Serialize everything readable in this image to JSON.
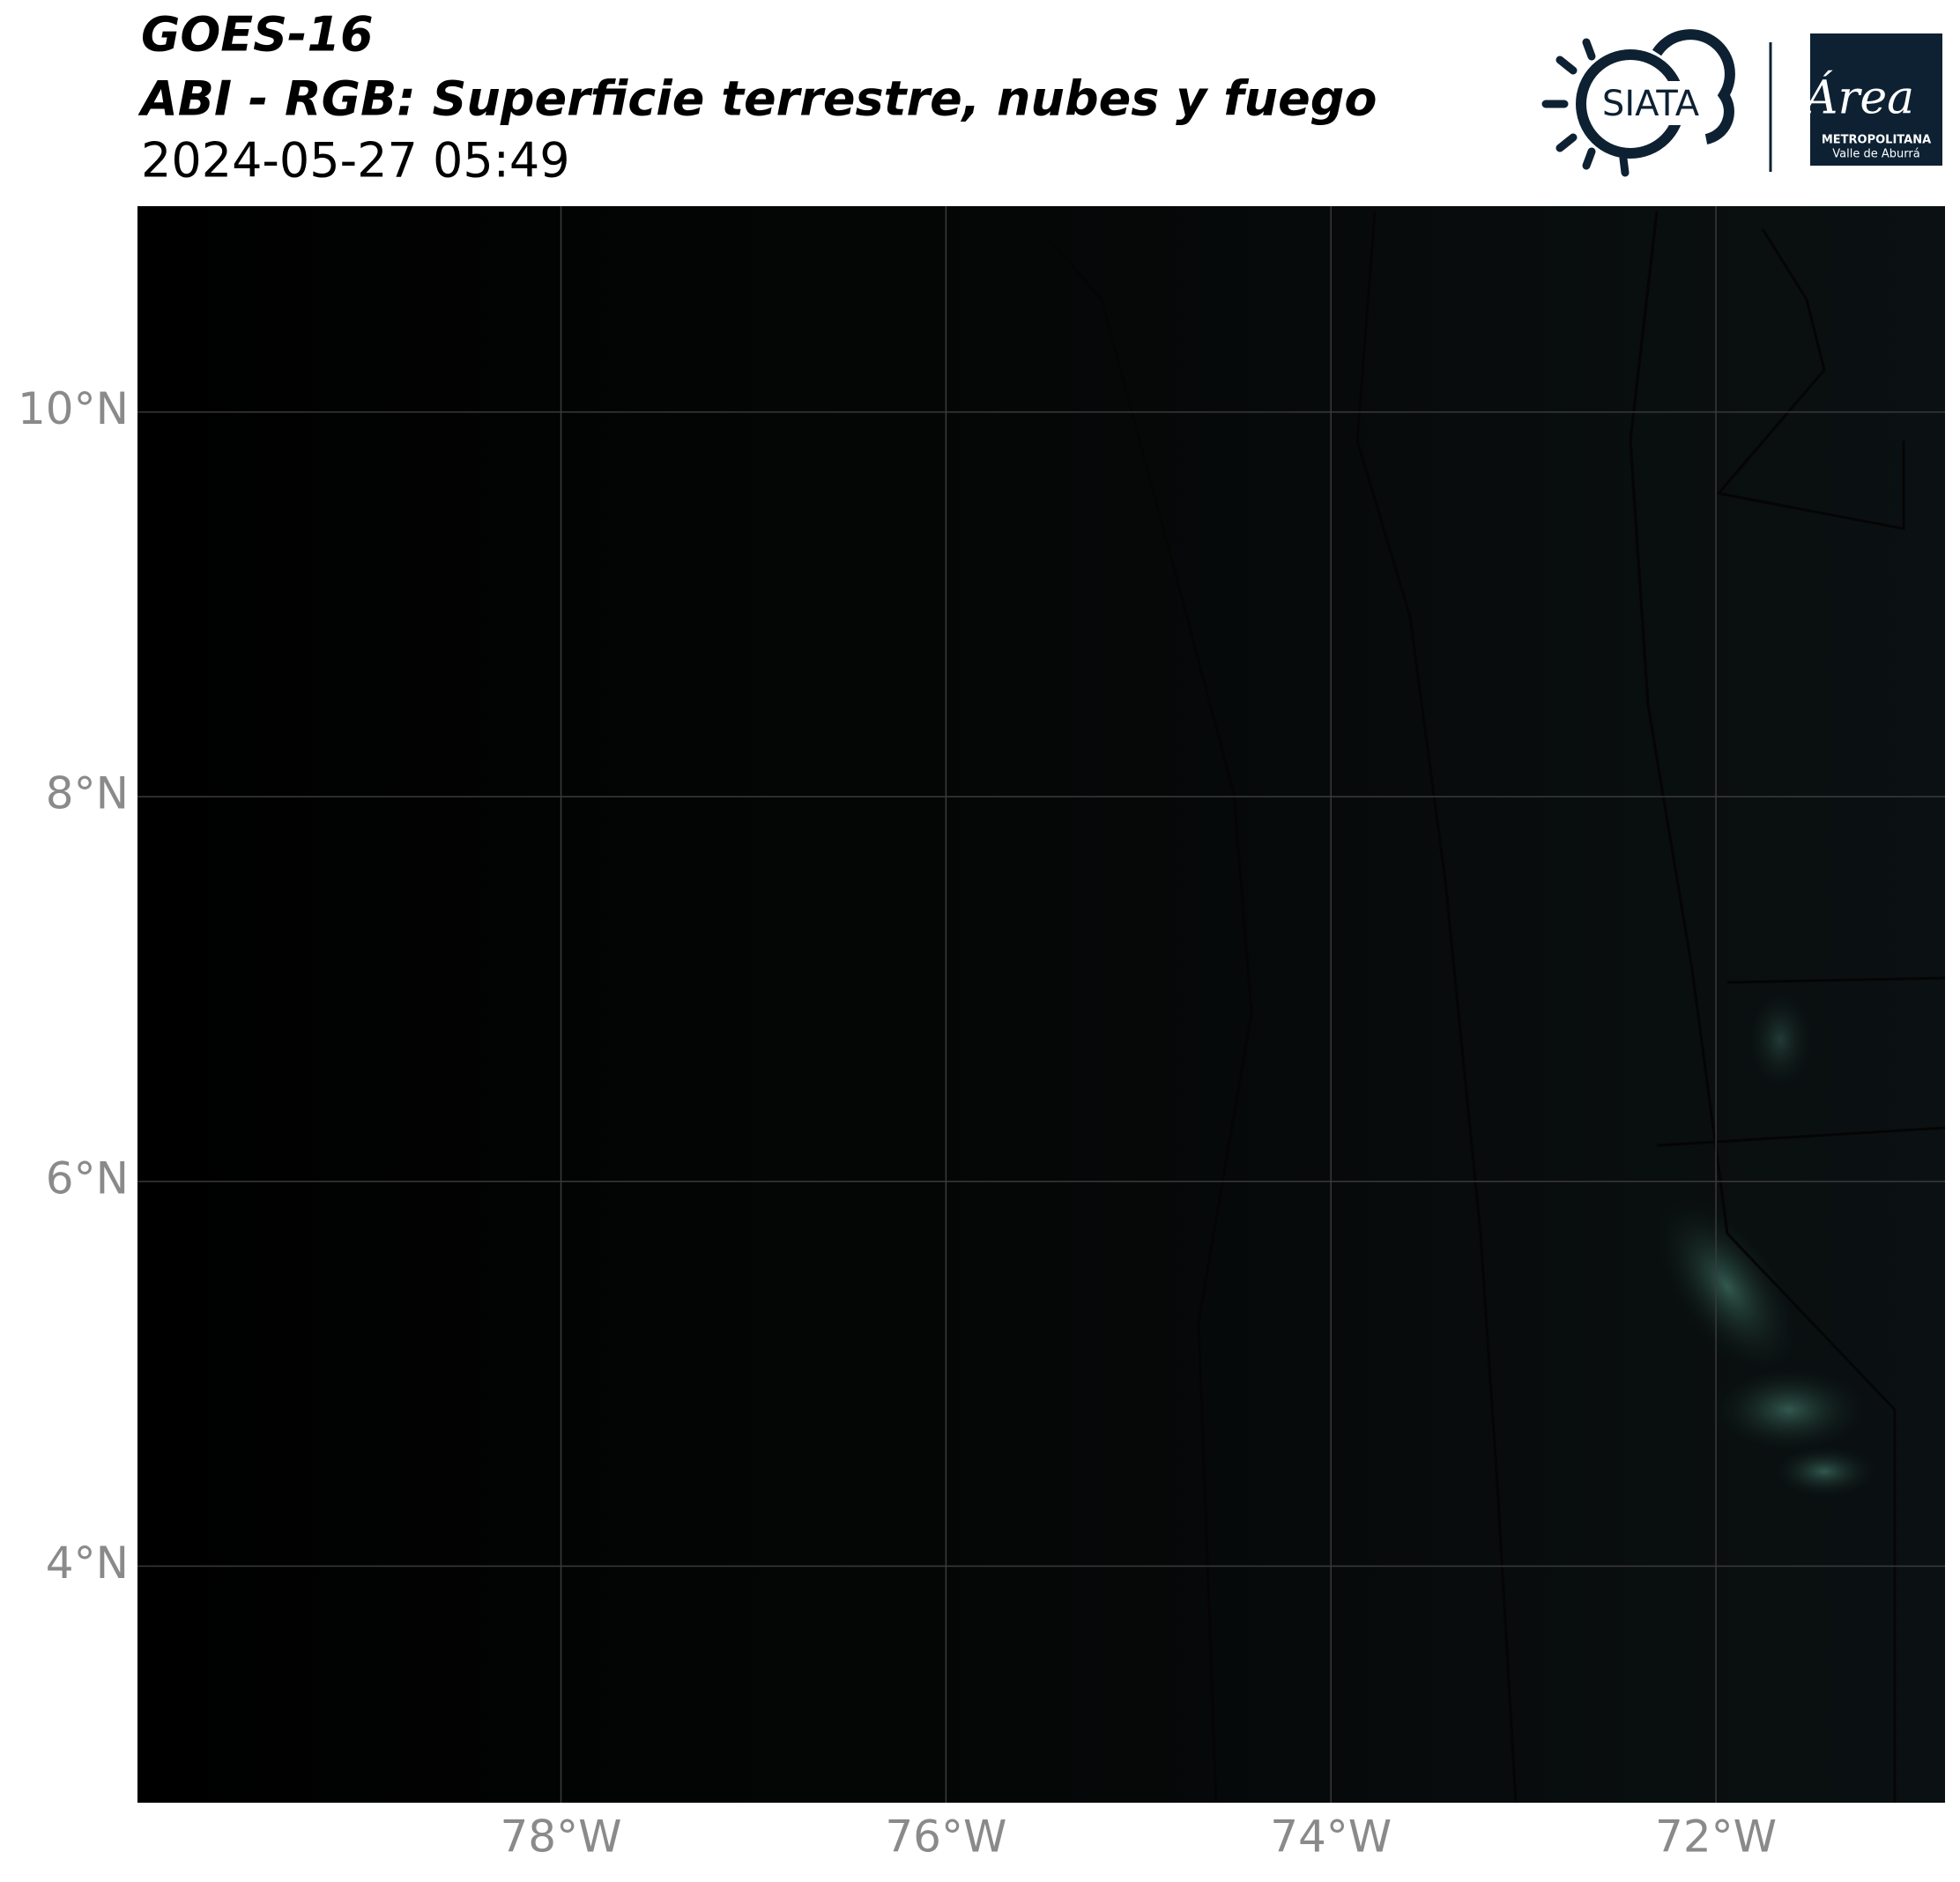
{
  "header": {
    "title": "GOES-16",
    "subtitle": "ABI - RGB: Superficie terrestre, nubes y fuego",
    "datetime": "2024-05-27 05:49"
  },
  "logos": {
    "siata": "SIATA",
    "area": "Área",
    "area_line1": "METROPOLITANA",
    "area_line2": "Valle de Aburrá"
  },
  "map": {
    "lon_range": [
      -80.2,
      -70.81
    ],
    "lat_range": [
      2.77,
      11.07
    ],
    "lon_ticks": [
      {
        "value": -78,
        "label": "78°W"
      },
      {
        "value": -76,
        "label": "76°W"
      },
      {
        "value": -74,
        "label": "74°W"
      },
      {
        "value": -72,
        "label": "72°W"
      }
    ],
    "lat_ticks": [
      {
        "value": 10,
        "label": "10°N"
      },
      {
        "value": 8,
        "label": "8°N"
      },
      {
        "value": 6,
        "label": "6°N"
      },
      {
        "value": 4,
        "label": "4°N"
      }
    ]
  }
}
